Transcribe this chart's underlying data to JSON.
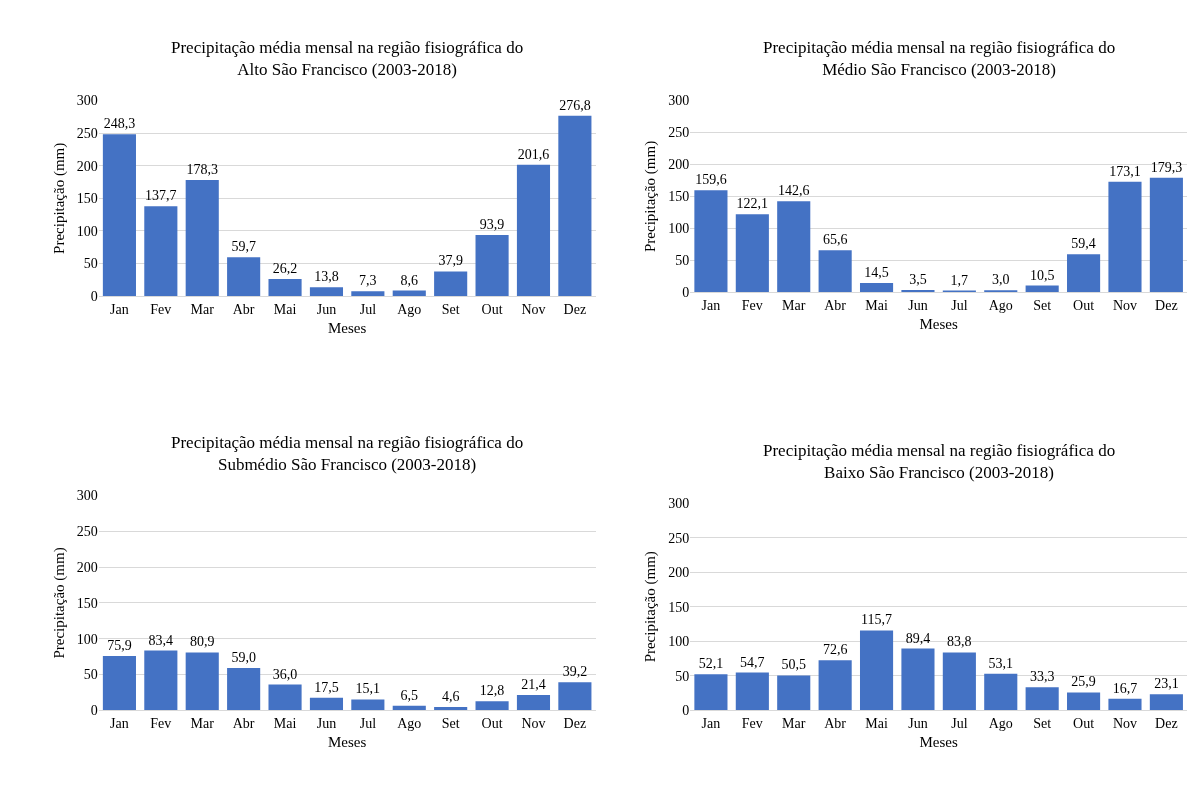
{
  "chart_data": [
    {
      "type": "bar",
      "title": "Precipitação média mensal na região fisiográfica do\nAlto São Francisco (2003-2018)",
      "xlabel": "Meses",
      "ylabel": "Precipitação (mm)",
      "categories": [
        "Jan",
        "Fev",
        "Mar",
        "Abr",
        "Mai",
        "Jun",
        "Jul",
        "Ago",
        "Set",
        "Out",
        "Nov",
        "Dez"
      ],
      "color": "#4472c4",
      "values": [
        248.3,
        137.7,
        178.3,
        59.7,
        26.2,
        13.8,
        7.3,
        8.6,
        37.9,
        93.9,
        201.6,
        276.8
      ],
      "value_labels": [
        "248,3",
        "137,7",
        "178,3",
        "59,7",
        "26,2",
        "13,8",
        "7,3",
        "8,6",
        "37,9",
        "93,9",
        "201,6",
        "276,8"
      ],
      "ylim": [
        0,
        300
      ],
      "yticks": [
        0,
        50,
        100,
        150,
        200,
        250,
        300
      ],
      "grid": "y"
    },
    {
      "type": "bar",
      "title": "Precipitação média mensal na região fisiográfica do\nMédio São Francisco (2003-2018)",
      "xlabel": "Meses",
      "ylabel": "Precipitação (mm)",
      "categories": [
        "Jan",
        "Fev",
        "Mar",
        "Abr",
        "Mai",
        "Jun",
        "Jul",
        "Ago",
        "Set",
        "Out",
        "Nov",
        "Dez"
      ],
      "color": "#4472c4",
      "values": [
        159.6,
        122.1,
        142.6,
        65.6,
        14.5,
        3.5,
        1.7,
        3.0,
        10.5,
        59.4,
        173.1,
        179.3
      ],
      "value_labels": [
        "159,6",
        "122,1",
        "142,6",
        "65,6",
        "14,5",
        "3,5",
        "1,7",
        "3,0",
        "10,5",
        "59,4",
        "173,1",
        "179,3"
      ],
      "ylim": [
        0,
        300
      ],
      "yticks": [
        0,
        50,
        100,
        150,
        200,
        250,
        300
      ],
      "grid": "y"
    },
    {
      "type": "bar",
      "title": "Precipitação média mensal na região fisiográfica do\nSubmédio São Francisco (2003-2018)",
      "xlabel": "Meses",
      "ylabel": "Precipitação (mm)",
      "categories": [
        "Jan",
        "Fev",
        "Mar",
        "Abr",
        "Mai",
        "Jun",
        "Jul",
        "Ago",
        "Set",
        "Out",
        "Nov",
        "Dez"
      ],
      "color": "#4472c4",
      "values": [
        75.9,
        83.4,
        80.9,
        59.0,
        36.0,
        17.5,
        15.1,
        6.5,
        4.6,
        12.8,
        21.4,
        39.2
      ],
      "value_labels": [
        "75,9",
        "83,4",
        "80,9",
        "59,0",
        "36,0",
        "17,5",
        "15,1",
        "6,5",
        "4,6",
        "12,8",
        "21,4",
        "39,2"
      ],
      "ylim": [
        0,
        300
      ],
      "yticks": [
        0,
        50,
        100,
        150,
        200,
        250,
        300
      ],
      "grid": "y"
    },
    {
      "type": "bar",
      "title": "Precipitação média mensal na região fisiográfica do\nBaixo São Francisco (2003-2018)",
      "xlabel": "Meses",
      "ylabel": "Precipitação (mm)",
      "categories": [
        "Jan",
        "Fev",
        "Mar",
        "Abr",
        "Mai",
        "Jun",
        "Jul",
        "Ago",
        "Set",
        "Out",
        "Nov",
        "Dez"
      ],
      "color": "#4472c4",
      "values": [
        52.1,
        54.7,
        50.5,
        72.6,
        115.7,
        89.4,
        83.8,
        53.1,
        33.3,
        25.9,
        16.7,
        23.1
      ],
      "value_labels": [
        "52,1",
        "54,7",
        "50,5",
        "72,6",
        "115,7",
        "89,4",
        "83,8",
        "53,1",
        "33,3",
        "25,9",
        "16,7",
        "23,1"
      ],
      "ylim": [
        0,
        300
      ],
      "yticks": [
        0,
        50,
        100,
        150,
        200,
        250,
        300
      ],
      "grid": "y"
    }
  ]
}
